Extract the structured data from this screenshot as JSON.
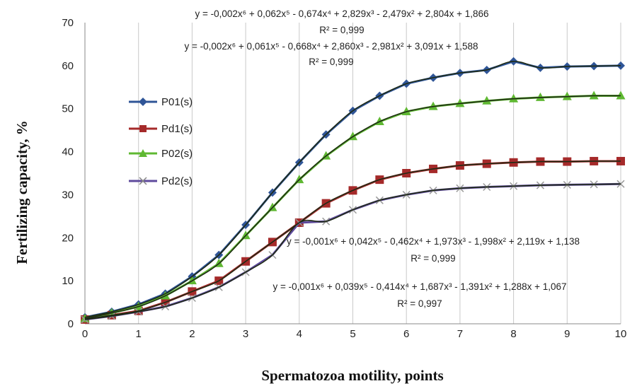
{
  "chart_data": {
    "type": "line",
    "xlabel": "Spermatozoa motility, points",
    "ylabel": "Fertilizing capacity, %",
    "xlim": [
      0,
      10
    ],
    "ylim": [
      0,
      70
    ],
    "x_ticks": [
      "0",
      "1",
      "2",
      "3",
      "4",
      "5",
      "6",
      "7",
      "8",
      "9",
      "10"
    ],
    "y_ticks": [
      "0",
      "10",
      "20",
      "30",
      "40",
      "50",
      "60",
      "70"
    ],
    "grid": "vertical",
    "legend_position": "left",
    "x": [
      0,
      0.5,
      1,
      1.5,
      2,
      2.5,
      3,
      3.5,
      4,
      4.5,
      5,
      5.5,
      6,
      6.5,
      7,
      7.5,
      8,
      8.5,
      9,
      9.5,
      10
    ],
    "series": [
      {
        "name": "P01(s)",
        "color": "#2f5597",
        "marker": "diamond",
        "values": [
          1.5,
          2.8,
          4.5,
          7,
          11,
          16,
          23,
          30.5,
          37.5,
          44,
          49.5,
          53,
          55.8,
          57.2,
          58.3,
          59,
          61,
          59.5,
          59.8,
          59.9,
          60
        ]
      },
      {
        "name": "Pd1(s)",
        "color": "#a52a2a",
        "marker": "square",
        "values": [
          1,
          2,
          3,
          5,
          7.5,
          10,
          14.5,
          19,
          23.5,
          28,
          31,
          33.5,
          35,
          36,
          36.8,
          37.2,
          37.5,
          37.7,
          37.7,
          37.8,
          37.8
        ]
      },
      {
        "name": "P02(s)",
        "color": "#5fb832",
        "marker": "triangle",
        "values": [
          1.2,
          2.5,
          4,
          6.5,
          10,
          14,
          20.5,
          27,
          33.5,
          39,
          43.5,
          47,
          49.3,
          50.5,
          51.2,
          51.8,
          52.3,
          52.6,
          52.8,
          53,
          53
        ]
      },
      {
        "name": "Pd2(s)",
        "color": "#5e4a9c",
        "marker": "x",
        "values": [
          1,
          1.8,
          2.8,
          4,
          6,
          8.5,
          12,
          16,
          23.5,
          23.8,
          26.5,
          28.7,
          30,
          31,
          31.5,
          31.8,
          32,
          32.2,
          32.3,
          32.4,
          32.5
        ]
      }
    ],
    "trendlines": [
      {
        "equation": "y = -0,002x⁶ + 0,062x⁵ - 0,674x⁴ + 2,829x³ - 2,479x² + 2,804x + 1,866",
        "r2": "R² = 0,999"
      },
      {
        "equation": "y = -0,002x⁶ + 0,061x⁵ - 0,668x⁴ + 2,860x³ - 2,981x² + 3,091x + 1,588",
        "r2": "R² = 0,999"
      },
      {
        "equation": "y = -0,001x⁶ + 0,042x⁵ - 0,462x⁴ + 1,973x³ - 1,998x² + 2,119x + 1,138",
        "r2": "R² = 0,999"
      },
      {
        "equation": "y = -0,001x⁶ + 0,039x⁵ - 0,414x⁴ + 1,687x³ - 1,391x² + 1,288x + 1,067",
        "r2": "R² = 0,997"
      }
    ]
  }
}
